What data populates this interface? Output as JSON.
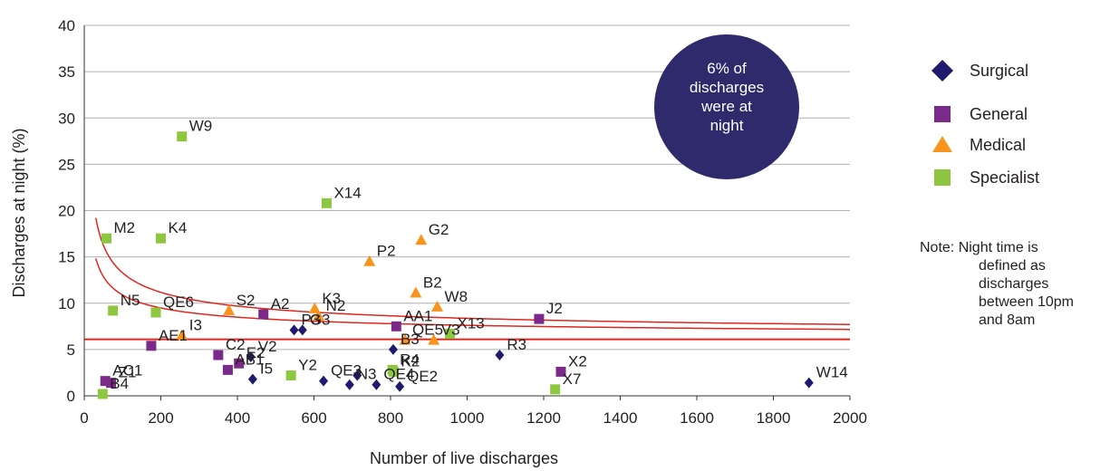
{
  "chart_data": {
    "type": "scatter",
    "title": "",
    "xlabel": "Number of live discharges",
    "ylabel": "Discharges at night (%)",
    "xlim": [
      0,
      2000
    ],
    "ylim": [
      0,
      40
    ],
    "x_ticks": [
      "0",
      "200",
      "400",
      "600",
      "800",
      "1000",
      "1200",
      "1400",
      "1600",
      "1800",
      "2000"
    ],
    "y_ticks": [
      "0",
      "5",
      "10",
      "15",
      "20",
      "25",
      "30",
      "35",
      "40"
    ],
    "grid": "horizontal",
    "legend_position": "right",
    "mean_line": 6.1,
    "bubble_text": [
      "6% of",
      "discharges",
      "were at",
      "night"
    ],
    "note_lines": [
      "Note: Night time is",
      "defined as",
      "discharges",
      "between 10pm",
      "and 8am"
    ],
    "colors": {
      "Surgical": "#1f1a6e",
      "General": "#7b2a8a",
      "Medical": "#f7941d",
      "Specialist": "#8dc63f",
      "limit_lines": "#e0261f",
      "bubble": "#2e2a6b",
      "grid": "#b0b0b0"
    },
    "series": [
      {
        "name": "Surgical",
        "marker": "diamond",
        "points": [
          {
            "label": "V2",
            "x": 435,
            "y": 4.2
          },
          {
            "label": "I5",
            "x": 440,
            "y": 1.8
          },
          {
            "label": "P3",
            "x": 548,
            "y": 7.1
          },
          {
            "label": "G3",
            "x": 570,
            "y": 7.1
          },
          {
            "label": "QE3",
            "x": 625,
            "y": 1.6
          },
          {
            "label": "N3",
            "x": 693,
            "y": 1.2
          },
          {
            "label": "",
            "x": 713,
            "y": 2.2
          },
          {
            "label": "QE4",
            "x": 763,
            "y": 1.2
          },
          {
            "label": "B3",
            "x": 807,
            "y": 5.0
          },
          {
            "label": "QE2",
            "x": 824,
            "y": 1.0
          },
          {
            "label": "R3",
            "x": 1085,
            "y": 4.4
          },
          {
            "label": "W14",
            "x": 1893,
            "y": 1.4
          }
        ]
      },
      {
        "name": "General",
        "marker": "square",
        "points": [
          {
            "label": "AC1",
            "x": 55,
            "y": 1.6
          },
          {
            "label": "Z1",
            "x": 70,
            "y": 1.4
          },
          {
            "label": "AE1",
            "x": 175,
            "y": 5.4
          },
          {
            "label": "C2",
            "x": 350,
            "y": 4.4
          },
          {
            "label": "AB1",
            "x": 375,
            "y": 2.8
          },
          {
            "label": "E2",
            "x": 404,
            "y": 3.5
          },
          {
            "label": "A2",
            "x": 468,
            "y": 8.8
          },
          {
            "label": "AA1",
            "x": 815,
            "y": 7.5
          },
          {
            "label": "J2",
            "x": 1188,
            "y": 8.3
          },
          {
            "label": "X2",
            "x": 1245,
            "y": 2.6
          }
        ]
      },
      {
        "name": "Medical",
        "marker": "triangle",
        "points": [
          {
            "label": "I3",
            "x": 255,
            "y": 6.5
          },
          {
            "label": "S2",
            "x": 378,
            "y": 9.2
          },
          {
            "label": "K3",
            "x": 602,
            "y": 9.4
          },
          {
            "label": "N2",
            "x": 612,
            "y": 8.6
          },
          {
            "label": "P2",
            "x": 745,
            "y": 14.5
          },
          {
            "label": "QE5",
            "x": 838,
            "y": 6.0
          },
          {
            "label": "B2",
            "x": 866,
            "y": 11.1
          },
          {
            "label": "G2",
            "x": 880,
            "y": 16.8
          },
          {
            "label": "V3",
            "x": 913,
            "y": 6.0
          },
          {
            "label": "W8",
            "x": 922,
            "y": 9.6
          }
        ]
      },
      {
        "name": "Specialist",
        "marker": "square",
        "points": [
          {
            "label": "B4",
            "x": 48,
            "y": 0.2
          },
          {
            "label": "M2",
            "x": 58,
            "y": 17.0
          },
          {
            "label": "N5",
            "x": 75,
            "y": 9.2
          },
          {
            "label": "QE6",
            "x": 187,
            "y": 9.0
          },
          {
            "label": "K4",
            "x": 200,
            "y": 17.0
          },
          {
            "label": "W9",
            "x": 255,
            "y": 28.0
          },
          {
            "label": "Y2",
            "x": 540,
            "y": 2.2
          },
          {
            "label": "X14",
            "x": 633,
            "y": 20.8
          },
          {
            "label": "R4",
            "x": 805,
            "y": 2.8
          },
          {
            "label": "X13",
            "x": 955,
            "y": 6.7
          },
          {
            "label": "X7",
            "x": 1230,
            "y": 0.7
          },
          {
            "label": "K2",
            "x": 808,
            "y": 2.6
          }
        ]
      }
    ]
  }
}
